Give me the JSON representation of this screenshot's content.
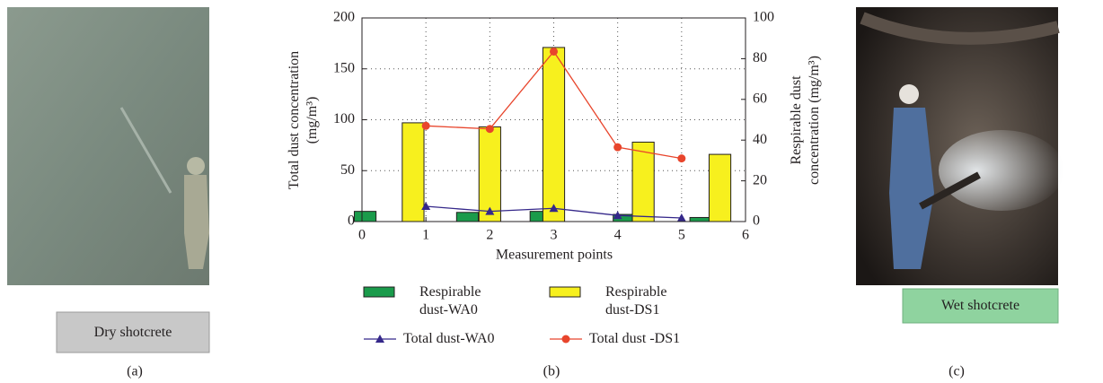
{
  "chart_data": {
    "type": "combo",
    "xlabel": "Measurement points",
    "ylabel": "Total dust concentration (mg/m³)",
    "y2label": "Respirable dust concentration (mg/m³)",
    "xlim": [
      0,
      6
    ],
    "xticks": [
      0,
      1,
      2,
      3,
      4,
      5,
      6
    ],
    "ylim": [
      0,
      200
    ],
    "yticks": [
      0,
      50,
      100,
      150,
      200
    ],
    "y2lim": [
      0,
      100
    ],
    "y2ticks": [
      0,
      20,
      40,
      60,
      80,
      100
    ],
    "grid": true,
    "series": [
      {
        "name": "Respirable dust-WA0",
        "type": "bar",
        "axis": "y2",
        "color": "#1a9b4b",
        "x": [
          0.05,
          1.65,
          2.8,
          4.1,
          5.3
        ],
        "values": [
          5,
          4.5,
          5,
          3.5,
          2
        ]
      },
      {
        "name": "Respirable dust-DS1",
        "type": "bar",
        "axis": "y2",
        "color": "#f7f01e",
        "x": [
          0.8,
          2,
          3,
          4.4,
          5.6
        ],
        "values": [
          48.5,
          46.5,
          85.5,
          39,
          33
        ]
      },
      {
        "name": "Total dust-WA0",
        "type": "line",
        "marker": "triangle",
        "color": "#35288a",
        "x": [
          1,
          2,
          3,
          4,
          5
        ],
        "values": [
          15,
          10,
          13,
          6,
          3.5
        ]
      },
      {
        "name": "Total dust -DS1",
        "type": "line",
        "marker": "circle",
        "color": "#e8452c",
        "x": [
          1,
          2,
          3,
          4,
          5
        ],
        "values": [
          94,
          91,
          167,
          73,
          62
        ]
      }
    ]
  },
  "panels": {
    "a": {
      "caption": "Dry shotcrete",
      "label": "(a)"
    },
    "b": {
      "label": "(b)"
    },
    "c": {
      "caption": "Wet shotcrete",
      "label": "(c)"
    }
  }
}
